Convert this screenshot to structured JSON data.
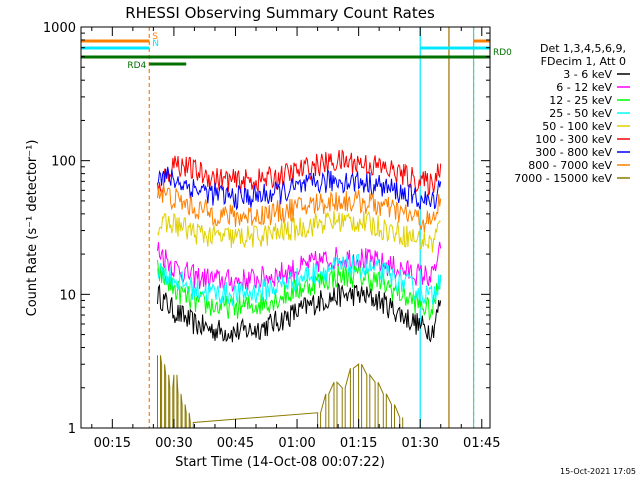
{
  "chart_data": {
    "type": "line",
    "title": "RHESSI Observing Summary Count Rates",
    "xlabel": "Start Time (14-Oct-08 00:07:22)",
    "ylabel": "Count Rate (s⁻¹ detector⁻¹)",
    "yscale": "log",
    "ylim": [
      1,
      1000
    ],
    "xlim_minutes": [
      7.37,
      107.0
    ],
    "x_ticks": [
      "00:15",
      "00:30",
      "00:45",
      "01:00",
      "01:15",
      "01:30",
      "01:45"
    ],
    "y_ticks": [
      "1",
      "10",
      "100",
      "1000"
    ],
    "legend_header": [
      "Det 1,3,4,5,6,9,",
      "FDecim 1, Att 0"
    ],
    "legend_placement": "right",
    "timestamp": "15-Oct-2021 17:05",
    "flags": [
      {
        "label": "S",
        "color": "#ff8000",
        "start": "00:07",
        "end": "00:24",
        "start2": "01:43",
        "end2": "01:47"
      },
      {
        "label": "N",
        "color": "#00e8ff",
        "start": "00:07",
        "end": "00:24",
        "start2": "01:30",
        "end2": "01:47"
      },
      {
        "label": "RD0",
        "color": "#007000",
        "start": "00:07",
        "end": "01:47"
      },
      {
        "label": "RD4",
        "color": "#007000",
        "start": "00:24",
        "end": "00:33"
      }
    ],
    "vlines": [
      {
        "time": "00:24",
        "color": "#ff8000",
        "style": "dashed"
      },
      {
        "time": "01:43",
        "color": "#ff8000",
        "style": "dashed"
      },
      {
        "time": "01:30",
        "color": "#00e8ff",
        "style": "solid"
      },
      {
        "time": "01:43",
        "color": "#00e8ff",
        "style": "solid"
      },
      {
        "time": "01:37",
        "color": "#a07000",
        "style": "solid"
      }
    ],
    "series": [
      {
        "name": "3 - 6 keV",
        "color": "#000000",
        "x": [
          "00:26",
          "00:30",
          "00:35",
          "00:40",
          "00:45",
          "00:50",
          "00:55",
          "01:00",
          "01:05",
          "01:10",
          "01:15",
          "01:20",
          "01:25",
          "01:30",
          "01:33",
          "01:35"
        ],
        "values": [
          10,
          7.5,
          6,
          5.4,
          5.2,
          5.5,
          6.2,
          7.4,
          8.8,
          9.8,
          10,
          9,
          7.2,
          5.8,
          5.4,
          9
        ]
      },
      {
        "name": "6 - 12 keV",
        "color": "#ff00ff",
        "x": [
          "00:26",
          "00:30",
          "00:35",
          "00:40",
          "00:45",
          "00:50",
          "00:55",
          "01:00",
          "01:05",
          "01:10",
          "01:15",
          "01:20",
          "01:25",
          "01:30",
          "01:33",
          "01:35"
        ],
        "values": [
          22,
          16,
          13.5,
          12.8,
          12.6,
          13,
          14,
          15.5,
          17.5,
          18.8,
          18.8,
          17.2,
          15.4,
          14,
          13.5,
          22
        ]
      },
      {
        "name": "12 - 25 keV",
        "color": "#00ff00",
        "x": [
          "00:26",
          "00:30",
          "00:35",
          "00:40",
          "00:45",
          "00:50",
          "00:55",
          "01:00",
          "01:05",
          "01:10",
          "01:15",
          "01:20",
          "01:25",
          "01:30",
          "01:33",
          "01:35"
        ],
        "values": [
          15,
          11,
          8.8,
          8.1,
          8,
          8.3,
          9.3,
          10.8,
          12.5,
          13.7,
          13.8,
          12.4,
          10.2,
          8.3,
          7.5,
          14
        ]
      },
      {
        "name": "25 - 50 keV",
        "color": "#00ffff",
        "x": [
          "00:26",
          "00:30",
          "00:35",
          "00:40",
          "00:45",
          "00:50",
          "00:55",
          "01:00",
          "01:05",
          "01:10",
          "01:15",
          "01:20",
          "01:25",
          "01:30",
          "01:33",
          "01:35"
        ],
        "values": [
          16,
          13,
          11,
          10.2,
          10,
          10.4,
          11.5,
          13,
          14.8,
          16,
          16.2,
          14.8,
          12.6,
          10.5,
          9.5,
          14
        ]
      },
      {
        "name": "50 - 100 keV",
        "color": "#e0d000",
        "x": [
          "00:26",
          "00:30",
          "00:35",
          "00:40",
          "00:45",
          "00:50",
          "00:55",
          "01:00",
          "01:05",
          "01:10",
          "01:15",
          "01:20",
          "01:25",
          "01:30",
          "01:33",
          "01:35"
        ],
        "values": [
          32,
          34,
          29,
          27,
          26.5,
          27,
          28.5,
          31,
          34,
          35.5,
          35,
          32,
          28.5,
          25.5,
          24,
          35
        ]
      },
      {
        "name": "100 - 300 keV",
        "color": "#ff0000",
        "x": [
          "00:26",
          "00:30",
          "00:35",
          "00:40",
          "00:45",
          "00:50",
          "00:55",
          "01:00",
          "01:05",
          "01:10",
          "01:15",
          "01:20",
          "01:25",
          "01:30",
          "01:33",
          "01:35"
        ],
        "values": [
          58,
          98,
          84,
          74,
          70,
          71,
          75,
          83,
          93,
          99,
          97,
          90,
          80,
          70,
          66,
          95
        ]
      },
      {
        "name": "300 - 800 keV",
        "color": "#0000ff",
        "x": [
          "00:26",
          "00:30",
          "00:35",
          "00:40",
          "00:45",
          "00:50",
          "00:55",
          "01:00",
          "01:05",
          "01:10",
          "01:15",
          "01:20",
          "01:25",
          "01:30",
          "01:33",
          "01:35"
        ],
        "values": [
          80,
          72,
          62,
          56,
          53,
          54,
          57,
          62,
          68,
          71,
          70,
          65,
          58,
          51,
          48,
          70
        ]
      },
      {
        "name": "800 - 7000 keV",
        "color": "#ff8000",
        "x": [
          "00:26",
          "00:30",
          "00:35",
          "00:40",
          "00:45",
          "00:50",
          "00:55",
          "01:00",
          "01:05",
          "01:10",
          "01:15",
          "01:20",
          "01:25",
          "01:30",
          "01:33",
          "01:35"
        ],
        "values": [
          60,
          52,
          44,
          40,
          38,
          39,
          41,
          44,
          48,
          50,
          49.5,
          46,
          41,
          36,
          34,
          52
        ]
      },
      {
        "name": "7000 - 15000 keV",
        "color": "#8c7a00",
        "x": [
          "00:26",
          "00:27",
          "00:28",
          "00:29",
          "00:30",
          "00:31",
          "00:32",
          "00:33",
          "00:34",
          "01:05",
          "01:07",
          "01:09",
          "01:11",
          "01:13",
          "01:15",
          "01:17",
          "01:19",
          "01:21",
          "01:23",
          "01:25"
        ],
        "values": [
          3.5,
          3,
          2.5,
          2,
          2.5,
          1.8,
          1.5,
          1.3,
          1.1,
          1.3,
          1.8,
          2.2,
          2,
          2.8,
          3,
          2.5,
          2.2,
          1.8,
          1.5,
          1.2
        ]
      }
    ]
  }
}
